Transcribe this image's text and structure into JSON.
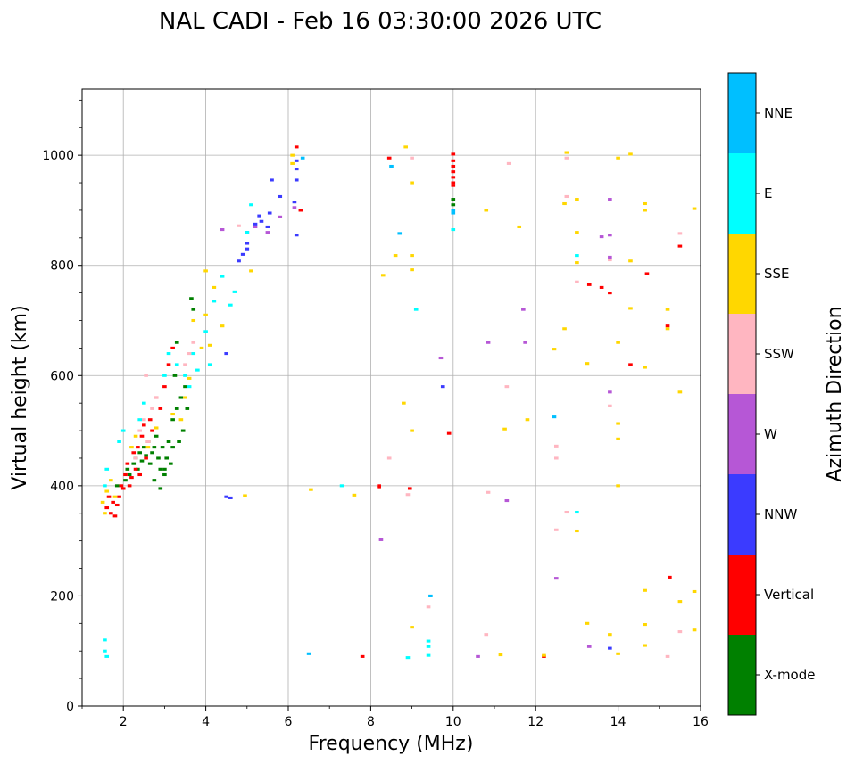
{
  "chart_data": {
    "type": "scatter",
    "title": "NAL CADI - Feb 16 03:30:00 2026 UTC",
    "xlabel": "Frequency (MHz)",
    "ylabel": "Virtual height (km)",
    "colorbar_label": "Azimuth Direction",
    "xlim": [
      1,
      16
    ],
    "ylim": [
      0,
      1120
    ],
    "xticks": [
      2,
      4,
      6,
      8,
      10,
      12,
      14,
      16
    ],
    "yticks": [
      0,
      200,
      400,
      600,
      800,
      1000
    ],
    "grid": true,
    "categories": [
      "X-mode",
      "Vertical",
      "NNW",
      "W",
      "SSW",
      "SSE",
      "E",
      "NNE"
    ],
    "colors": {
      "X-mode": "#008000",
      "Vertical": "#ff0000",
      "NNW": "#3b3bff",
      "W": "#b657d6",
      "SSW": "#ffb6c1",
      "SSE": "#ffd700",
      "E": "#00ffff",
      "NNE": "#00bfff"
    },
    "series": [
      {
        "name": "X-mode",
        "points": [
          [
            1.85,
            400
          ],
          [
            2.05,
            410
          ],
          [
            2.1,
            430
          ],
          [
            2.15,
            420
          ],
          [
            2.25,
            440
          ],
          [
            2.3,
            450
          ],
          [
            2.35,
            430
          ],
          [
            2.4,
            460
          ],
          [
            2.45,
            445
          ],
          [
            2.5,
            470
          ],
          [
            2.55,
            455
          ],
          [
            2.6,
            480
          ],
          [
            2.65,
            440
          ],
          [
            2.7,
            460
          ],
          [
            2.75,
            470
          ],
          [
            2.8,
            490
          ],
          [
            2.85,
            450
          ],
          [
            2.9,
            430
          ],
          [
            2.95,
            470
          ],
          [
            3.0,
            430
          ],
          [
            3.05,
            450
          ],
          [
            3.1,
            480
          ],
          [
            3.15,
            440
          ],
          [
            3.2,
            520
          ],
          [
            3.25,
            600
          ],
          [
            3.3,
            540
          ],
          [
            3.35,
            480
          ],
          [
            3.4,
            560
          ],
          [
            3.45,
            500
          ],
          [
            3.5,
            580
          ],
          [
            3.55,
            540
          ],
          [
            3.65,
            740
          ],
          [
            3.7,
            720
          ],
          [
            2.75,
            410
          ],
          [
            2.9,
            395
          ],
          [
            3.0,
            420
          ],
          [
            3.2,
            470
          ],
          [
            3.3,
            660
          ],
          [
            10.0,
            920
          ],
          [
            10.0,
            910
          ]
        ]
      },
      {
        "name": "Vertical",
        "points": [
          [
            1.6,
            360
          ],
          [
            1.65,
            380
          ],
          [
            1.7,
            350
          ],
          [
            1.75,
            370
          ],
          [
            1.8,
            345
          ],
          [
            1.85,
            365
          ],
          [
            1.9,
            380
          ],
          [
            1.95,
            400
          ],
          [
            2.0,
            395
          ],
          [
            2.05,
            420
          ],
          [
            2.1,
            440
          ],
          [
            2.15,
            400
          ],
          [
            2.2,
            415
          ],
          [
            2.25,
            460
          ],
          [
            2.3,
            430
          ],
          [
            2.35,
            470
          ],
          [
            2.4,
            420
          ],
          [
            2.45,
            490
          ],
          [
            2.5,
            510
          ],
          [
            2.55,
            450
          ],
          [
            2.6,
            480
          ],
          [
            2.65,
            520
          ],
          [
            2.7,
            500
          ],
          [
            2.8,
            560
          ],
          [
            2.9,
            540
          ],
          [
            3.0,
            580
          ],
          [
            3.1,
            620
          ],
          [
            3.2,
            650
          ],
          [
            6.2,
            1015
          ],
          [
            6.3,
            900
          ],
          [
            8.2,
            400
          ],
          [
            8.45,
            995
          ],
          [
            8.95,
            395
          ],
          [
            10.0,
            1002
          ],
          [
            10.0,
            990
          ],
          [
            10.0,
            980
          ],
          [
            10.0,
            970
          ],
          [
            10.0,
            960
          ],
          [
            10.0,
            950
          ],
          [
            10.0,
            945
          ],
          [
            9.9,
            495
          ],
          [
            12.2,
            90
          ],
          [
            13.3,
            765
          ],
          [
            13.6,
            760
          ],
          [
            13.8,
            750
          ],
          [
            14.3,
            620
          ],
          [
            14.7,
            785
          ],
          [
            15.2,
            690
          ],
          [
            15.25,
            234
          ],
          [
            15.5,
            835
          ],
          [
            7.8,
            90
          ],
          [
            8.2,
            398
          ]
        ]
      },
      {
        "name": "NNW",
        "points": [
          [
            4.5,
            380
          ],
          [
            4.6,
            378
          ],
          [
            4.5,
            640
          ],
          [
            4.8,
            808
          ],
          [
            4.9,
            820
          ],
          [
            5.0,
            830
          ],
          [
            5.0,
            840
          ],
          [
            5.0,
            860
          ],
          [
            5.2,
            875
          ],
          [
            5.3,
            890
          ],
          [
            5.35,
            880
          ],
          [
            5.5,
            870
          ],
          [
            5.55,
            895
          ],
          [
            5.6,
            955
          ],
          [
            5.8,
            925
          ],
          [
            6.2,
            990
          ],
          [
            6.2,
            975
          ],
          [
            6.2,
            955
          ],
          [
            6.15,
            915
          ],
          [
            6.2,
            855
          ],
          [
            9.75,
            580
          ],
          [
            13.8,
            105
          ]
        ]
      },
      {
        "name": "W",
        "points": [
          [
            4.4,
            865
          ],
          [
            5.2,
            870
          ],
          [
            5.5,
            860
          ],
          [
            5.8,
            888
          ],
          [
            6.15,
            905
          ],
          [
            8.25,
            302
          ],
          [
            9.7,
            632
          ],
          [
            10.6,
            90
          ],
          [
            10.85,
            660
          ],
          [
            11.3,
            373
          ],
          [
            11.7,
            720
          ],
          [
            11.75,
            660
          ],
          [
            12.5,
            232
          ],
          [
            13.3,
            108
          ],
          [
            13.8,
            570
          ],
          [
            13.8,
            815
          ],
          [
            13.8,
            855
          ],
          [
            13.8,
            920
          ],
          [
            13.6,
            852
          ]
        ]
      },
      {
        "name": "SSW",
        "points": [
          [
            2.3,
            450
          ],
          [
            2.4,
            500
          ],
          [
            2.5,
            520
          ],
          [
            2.55,
            600
          ],
          [
            2.6,
            480
          ],
          [
            2.7,
            540
          ],
          [
            2.8,
            560
          ],
          [
            3.5,
            620
          ],
          [
            3.6,
            640
          ],
          [
            3.7,
            660
          ],
          [
            4.8,
            872
          ],
          [
            8.45,
            450
          ],
          [
            8.9,
            384
          ],
          [
            9.0,
            995
          ],
          [
            9.4,
            180
          ],
          [
            10.8,
            130
          ],
          [
            10.85,
            388
          ],
          [
            11.3,
            580
          ],
          [
            11.35,
            985
          ],
          [
            12.5,
            320
          ],
          [
            12.5,
            450
          ],
          [
            12.5,
            472
          ],
          [
            12.75,
            352
          ],
          [
            12.75,
            925
          ],
          [
            12.75,
            995
          ],
          [
            13.0,
            770
          ],
          [
            13.8,
            545
          ],
          [
            13.8,
            810
          ],
          [
            15.2,
            90
          ],
          [
            15.5,
            135
          ],
          [
            15.5,
            858
          ]
        ]
      },
      {
        "name": "SSE",
        "points": [
          [
            1.5,
            370
          ],
          [
            1.55,
            350
          ],
          [
            1.6,
            390
          ],
          [
            1.7,
            410
          ],
          [
            1.8,
            380
          ],
          [
            2.2,
            470
          ],
          [
            2.3,
            490
          ],
          [
            2.6,
            470
          ],
          [
            2.8,
            505
          ],
          [
            3.2,
            530
          ],
          [
            3.4,
            520
          ],
          [
            3.5,
            560
          ],
          [
            3.6,
            595
          ],
          [
            3.7,
            700
          ],
          [
            3.9,
            650
          ],
          [
            4.0,
            710
          ],
          [
            4.1,
            655
          ],
          [
            4.0,
            790
          ],
          [
            4.2,
            760
          ],
          [
            4.4,
            690
          ],
          [
            4.95,
            382
          ],
          [
            5.1,
            790
          ],
          [
            6.1,
            1000
          ],
          [
            6.1,
            985
          ],
          [
            6.55,
            393
          ],
          [
            7.6,
            383
          ],
          [
            8.3,
            782
          ],
          [
            8.6,
            818
          ],
          [
            8.8,
            550
          ],
          [
            8.85,
            1015
          ],
          [
            9.0,
            500
          ],
          [
            9.0,
            792
          ],
          [
            9.0,
            818
          ],
          [
            9.0,
            950
          ],
          [
            9.0,
            143
          ],
          [
            10.8,
            900
          ],
          [
            11.15,
            93
          ],
          [
            11.25,
            503
          ],
          [
            11.6,
            870
          ],
          [
            11.8,
            520
          ],
          [
            12.2,
            92
          ],
          [
            12.45,
            648
          ],
          [
            12.7,
            685
          ],
          [
            12.7,
            912
          ],
          [
            12.75,
            1005
          ],
          [
            13.0,
            318
          ],
          [
            13.0,
            805
          ],
          [
            13.0,
            860
          ],
          [
            13.0,
            920
          ],
          [
            13.25,
            150
          ],
          [
            13.25,
            622
          ],
          [
            13.8,
            130
          ],
          [
            14.0,
            95
          ],
          [
            14.0,
            485
          ],
          [
            14.0,
            513
          ],
          [
            14.0,
            400
          ],
          [
            14.0,
            660
          ],
          [
            14.0,
            995
          ],
          [
            14.3,
            722
          ],
          [
            14.3,
            808
          ],
          [
            14.3,
            1002
          ],
          [
            14.65,
            110
          ],
          [
            14.65,
            148
          ],
          [
            14.65,
            210
          ],
          [
            14.65,
            615
          ],
          [
            14.65,
            900
          ],
          [
            14.65,
            912
          ],
          [
            15.2,
            685
          ],
          [
            15.2,
            720
          ],
          [
            15.5,
            190
          ],
          [
            15.5,
            570
          ],
          [
            15.85,
            138
          ],
          [
            15.85,
            208
          ],
          [
            15.85,
            903
          ]
        ]
      },
      {
        "name": "E",
        "points": [
          [
            1.55,
            100
          ],
          [
            1.55,
            120
          ],
          [
            1.6,
            90
          ],
          [
            1.55,
            400
          ],
          [
            1.6,
            430
          ],
          [
            1.9,
            480
          ],
          [
            2.0,
            500
          ],
          [
            2.4,
            520
          ],
          [
            2.5,
            550
          ],
          [
            3.0,
            600
          ],
          [
            3.1,
            640
          ],
          [
            3.3,
            620
          ],
          [
            3.5,
            600
          ],
          [
            3.6,
            580
          ],
          [
            3.7,
            640
          ],
          [
            3.8,
            610
          ],
          [
            4.0,
            680
          ],
          [
            4.1,
            620
          ],
          [
            4.2,
            735
          ],
          [
            4.4,
            780
          ],
          [
            4.6,
            728
          ],
          [
            4.7,
            752
          ],
          [
            5.0,
            860
          ],
          [
            5.1,
            910
          ],
          [
            7.3,
            400
          ],
          [
            8.9,
            88
          ],
          [
            9.1,
            720
          ],
          [
            9.4,
            92
          ],
          [
            9.4,
            108
          ],
          [
            9.4,
            118
          ],
          [
            10.0,
            865
          ],
          [
            13.0,
            352
          ],
          [
            13.0,
            818
          ]
        ]
      },
      {
        "name": "NNE",
        "points": [
          [
            6.35,
            995
          ],
          [
            6.5,
            95
          ],
          [
            8.5,
            980
          ],
          [
            8.7,
            858
          ],
          [
            9.45,
            200
          ],
          [
            10.0,
            900
          ],
          [
            10.0,
            895
          ],
          [
            12.45,
            525
          ]
        ]
      }
    ]
  }
}
